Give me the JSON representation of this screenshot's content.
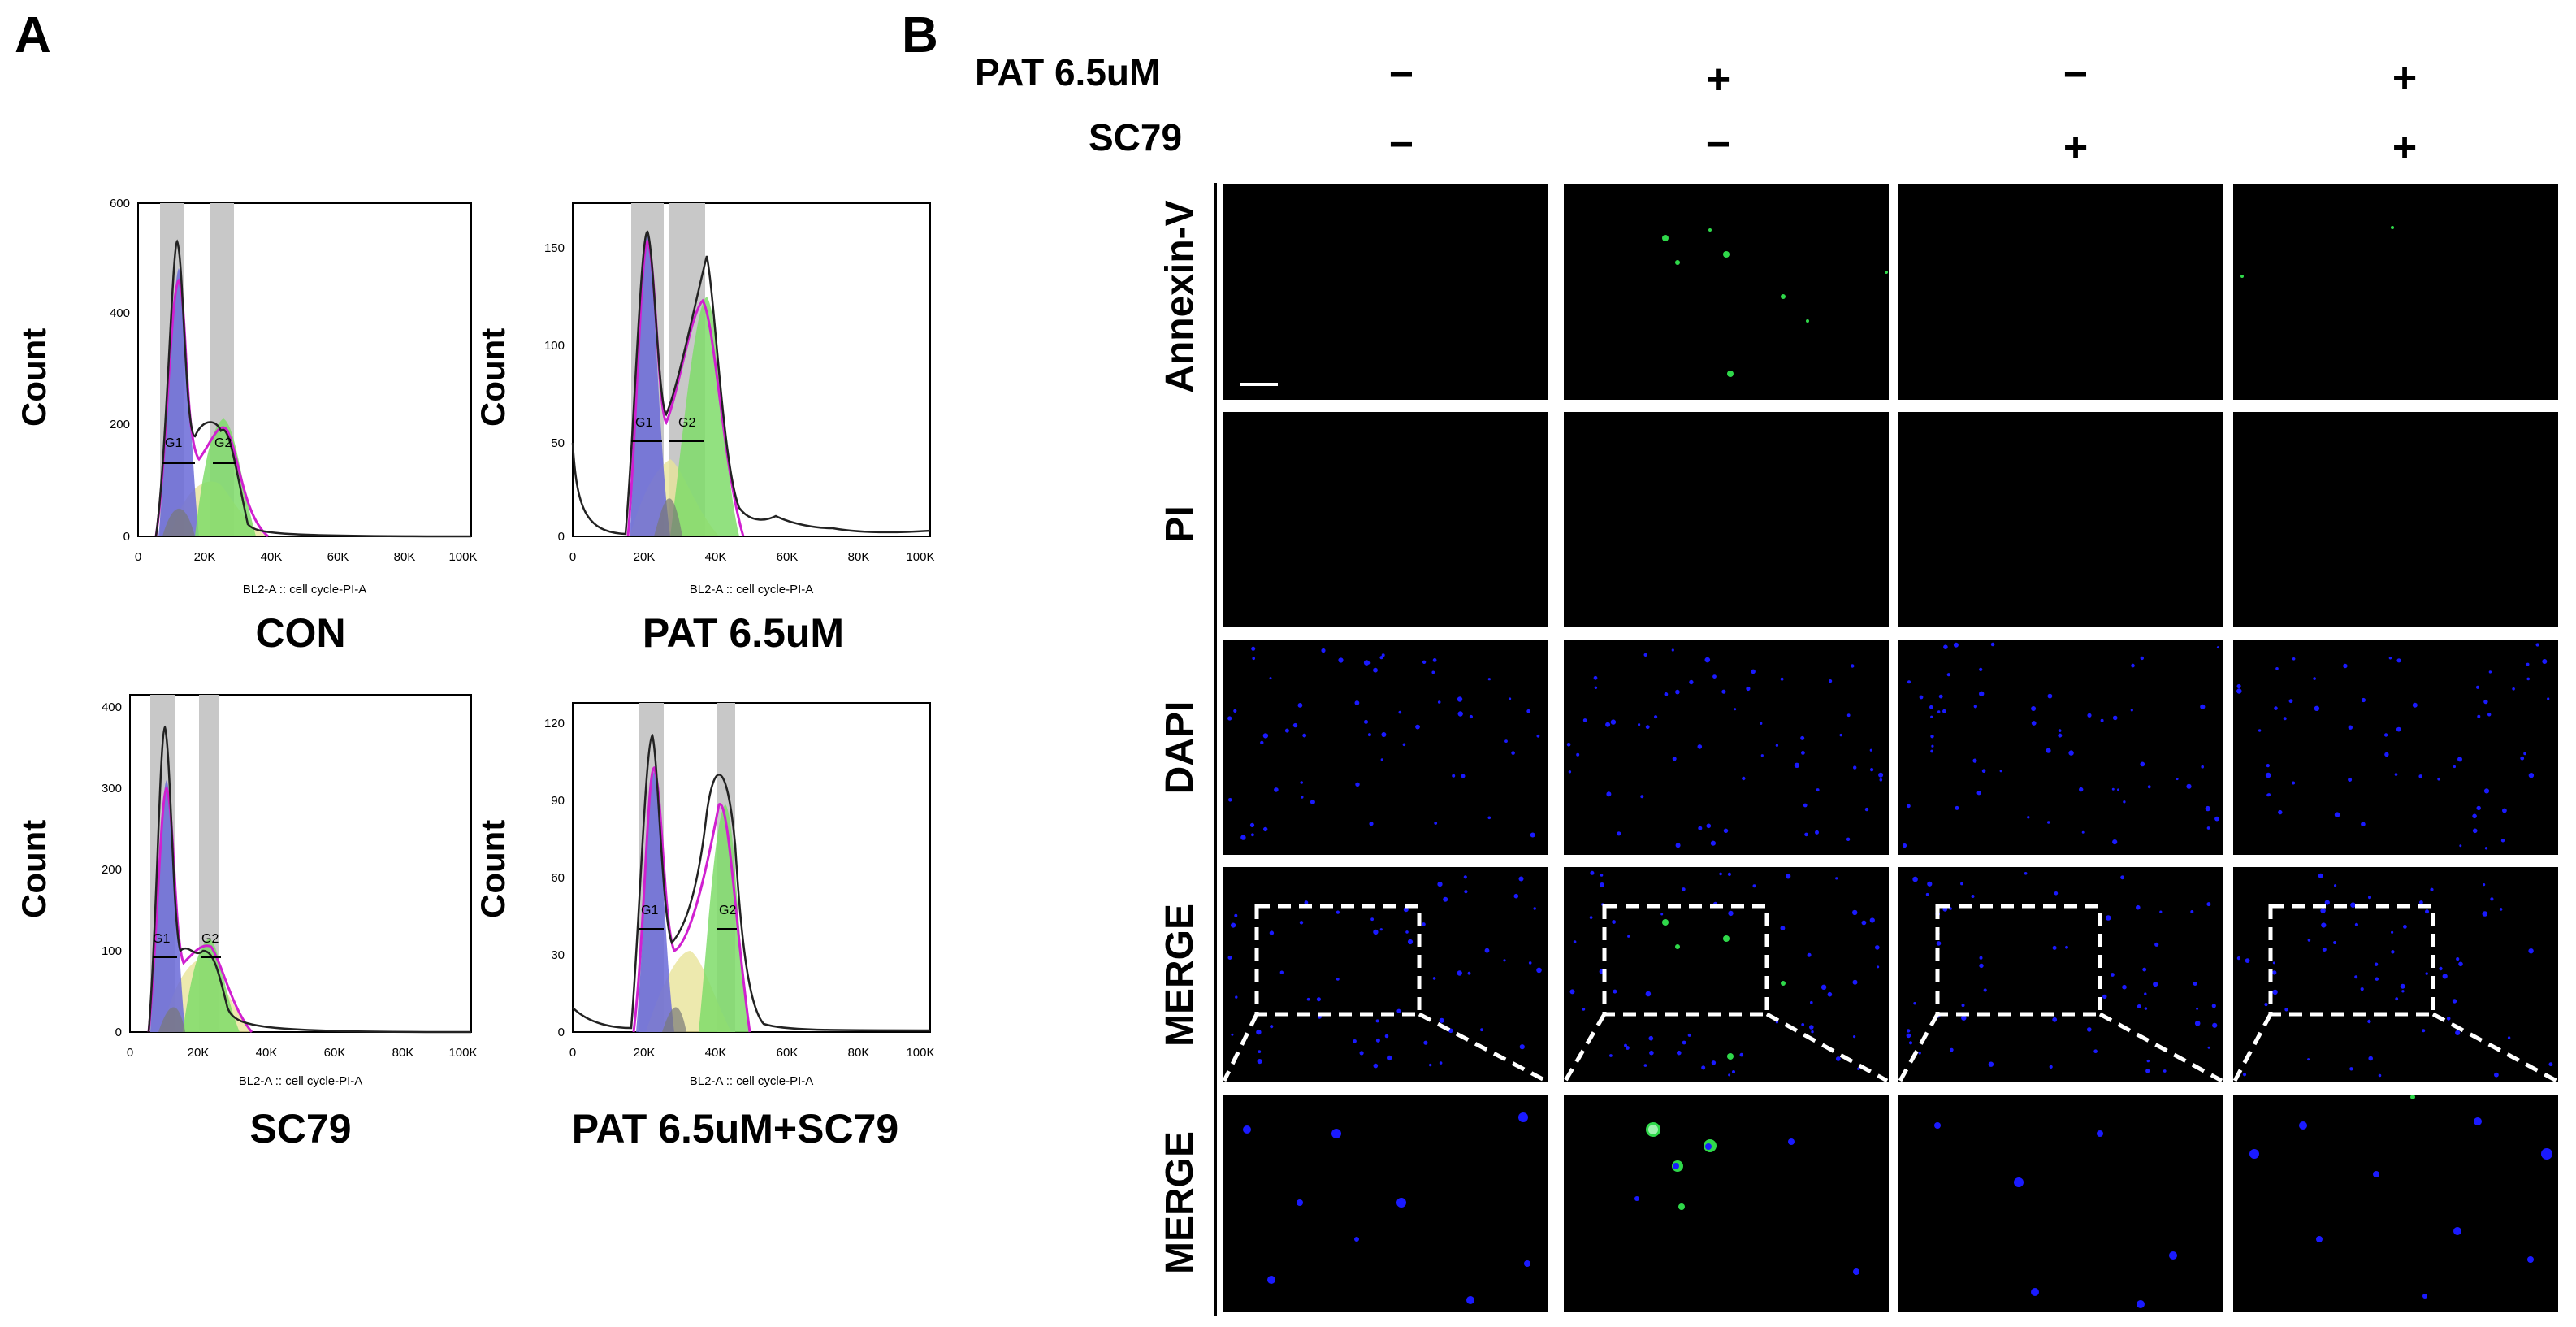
{
  "panel_a": {
    "letter": "A",
    "y_axis_label": "Count",
    "x_axis_label": "BL2-A :: cell cycle-PI-A",
    "x_ticks": [
      "0",
      "20K",
      "40K",
      "60K",
      "80K",
      "100K"
    ],
    "gate_labels": [
      "G1",
      "G2"
    ],
    "histograms": [
      {
        "label": "CON",
        "y_ticks": [
          "0",
          "200",
          "400",
          "600"
        ]
      },
      {
        "label": "PAT 6.5uM",
        "y_ticks": [
          "0",
          "50",
          "100",
          "150"
        ]
      },
      {
        "label": "SC79",
        "y_ticks": [
          "0",
          "100",
          "200",
          "300",
          "400"
        ]
      },
      {
        "label": "PAT 6.5uM+SC79",
        "y_ticks": [
          "0",
          "30",
          "60",
          "90",
          "120"
        ]
      }
    ]
  },
  "panel_b": {
    "letter": "B",
    "conditions": [
      {
        "label": "PAT 6.5uM",
        "signs": [
          "−",
          "+",
          "−",
          "+"
        ]
      },
      {
        "label": "SC79",
        "signs": [
          "−",
          "−",
          "+",
          "+"
        ]
      }
    ],
    "rows": [
      "Annexin-V",
      "PI",
      "DAPI",
      "MERGE",
      "MERGE"
    ]
  },
  "colors": {
    "g1_fill": "#6a6ad8",
    "g2_fill": "#7fdc6a",
    "s_fill": "#e8e49a",
    "fit_line": "#d020d0",
    "gate_band": "#c8c8c8",
    "annexin_green": "#2fd84a",
    "dapi_blue": "#1a1aff"
  }
}
